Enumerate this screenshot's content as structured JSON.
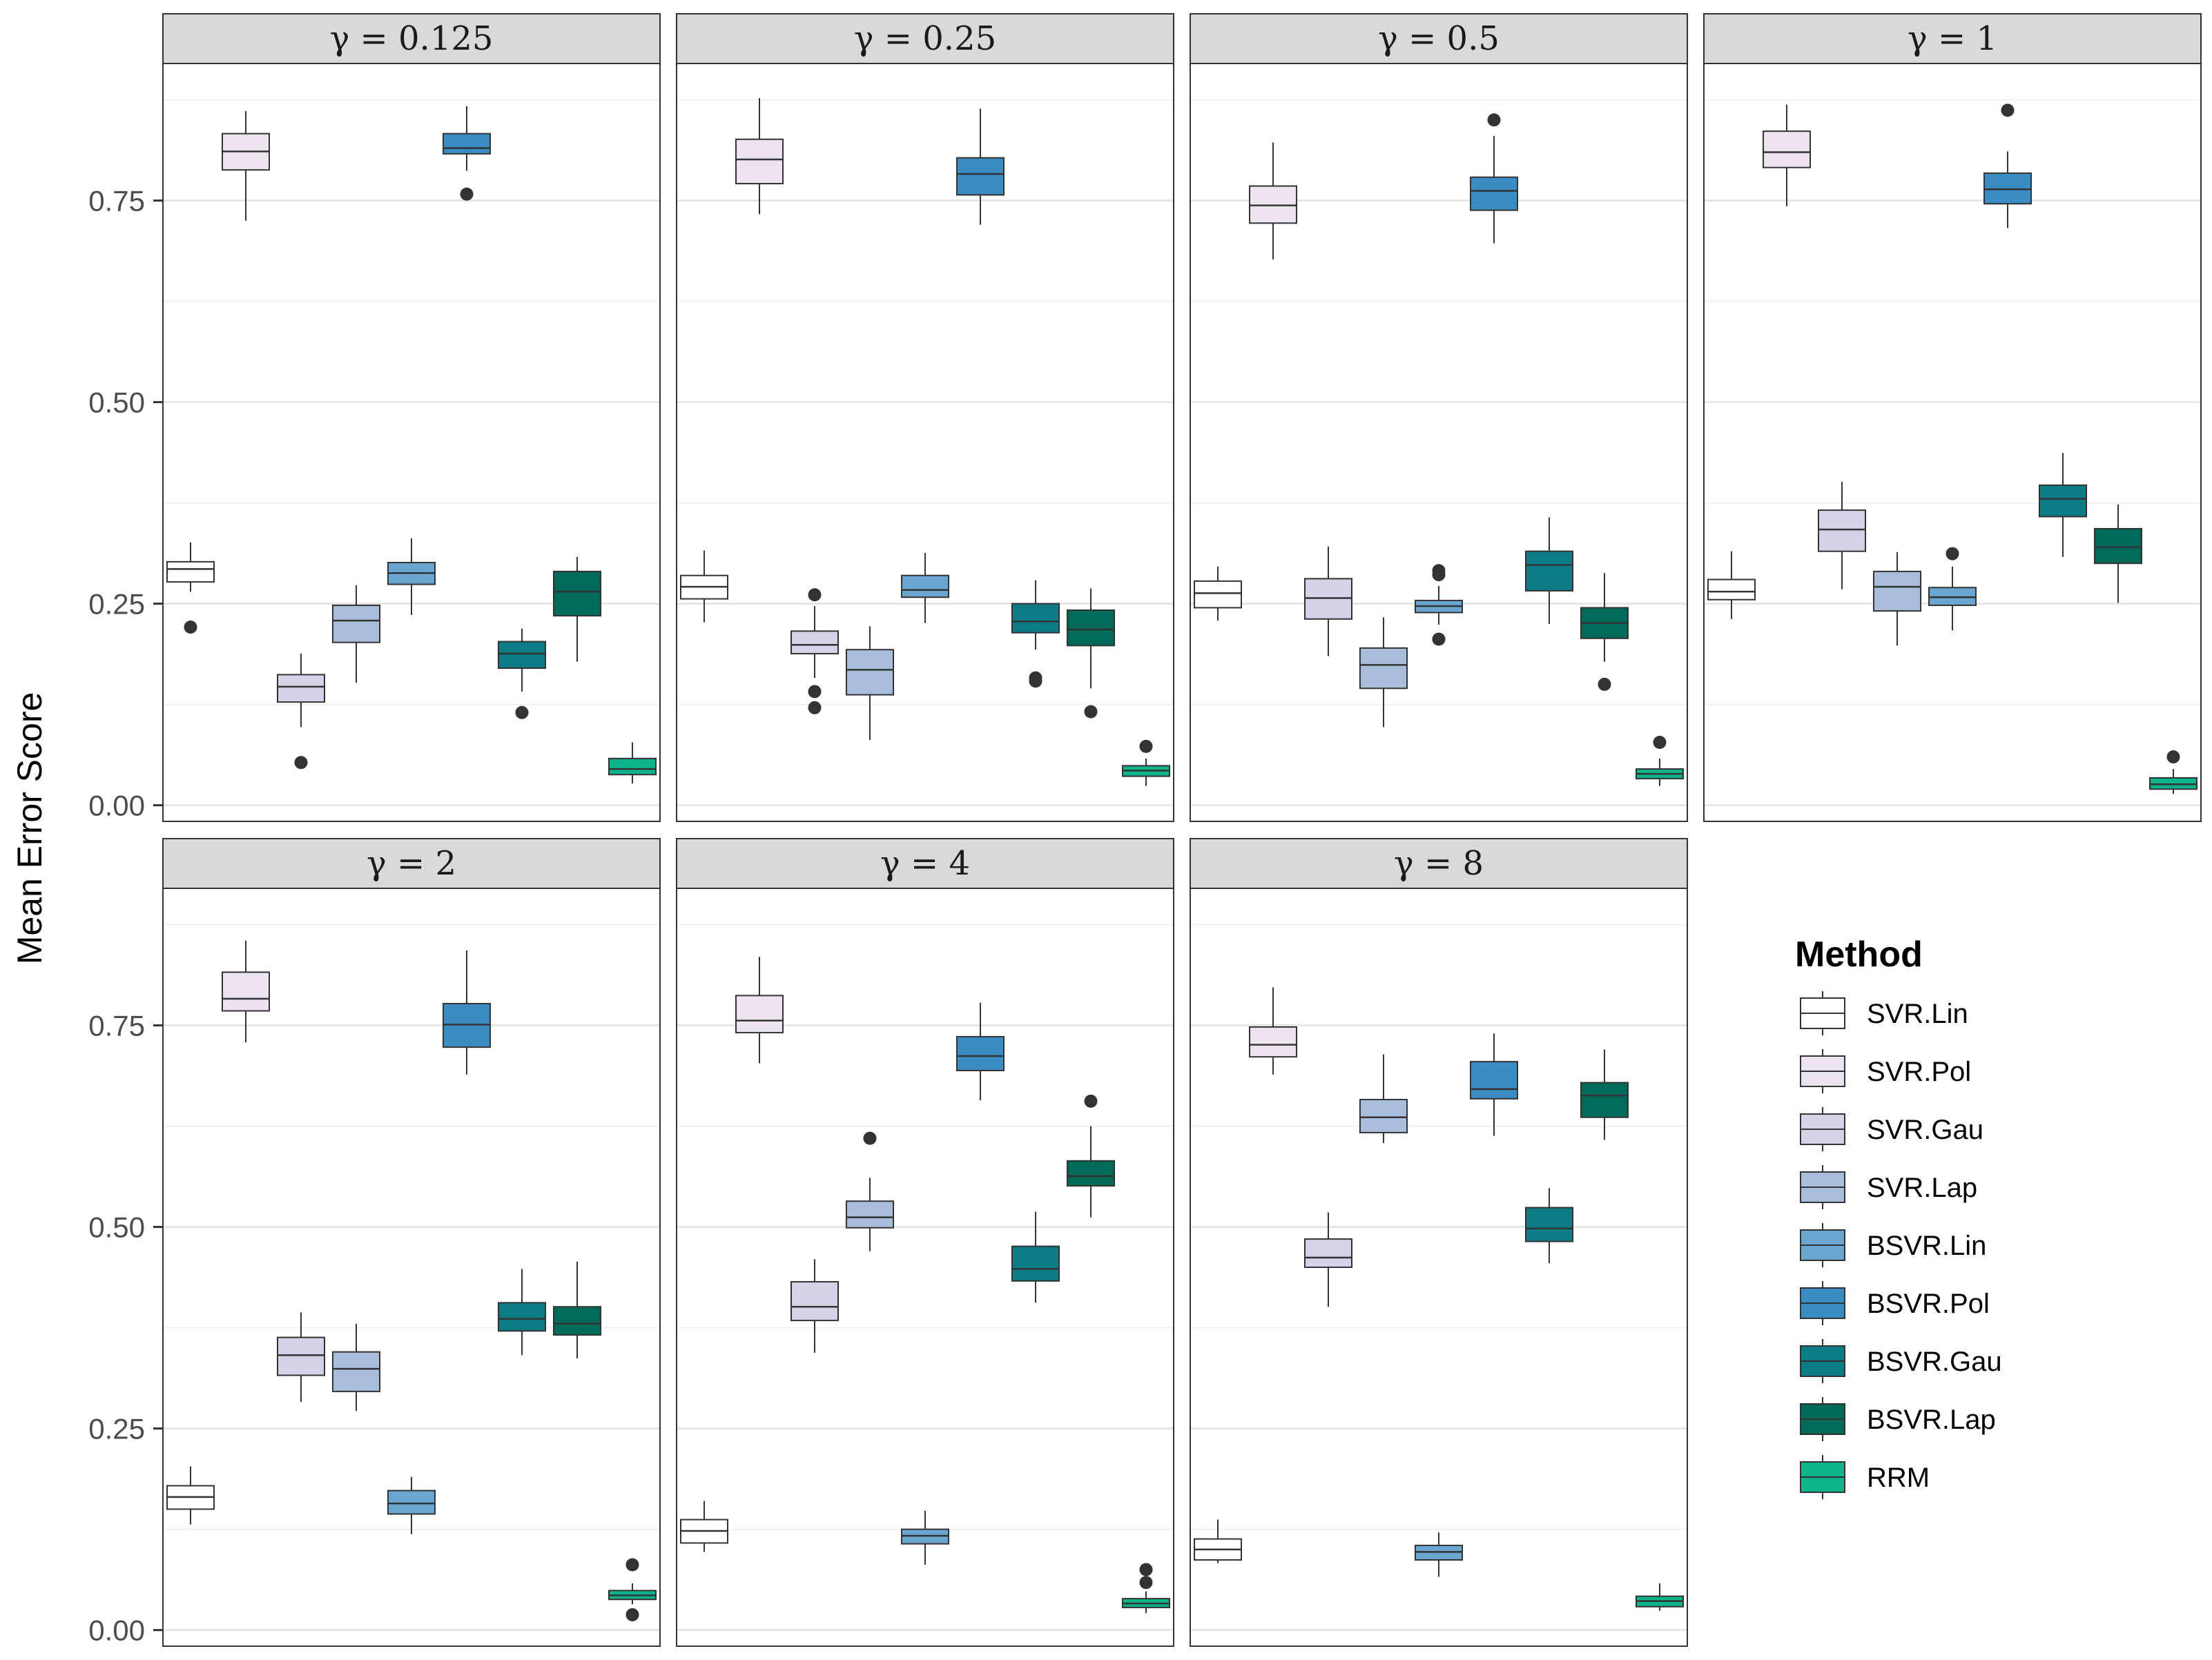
{
  "chart_data": {
    "type": "boxplot",
    "facet_variable": "γ",
    "ylabel": "Mean Error Score",
    "ylim": [
      -0.02,
      0.92
    ],
    "y_ticks": [
      0.0,
      0.25,
      0.5,
      0.75
    ],
    "y_tick_labels": [
      "0.00",
      "0.25",
      "0.50",
      "0.75"
    ],
    "grid": true,
    "legend": {
      "title": "Method",
      "position": "right",
      "entries": [
        {
          "name": "SVR.Lin",
          "color": "#FFFFFF"
        },
        {
          "name": "SVR.Pol",
          "color": "#EDE3F0"
        },
        {
          "name": "SVR.Gau",
          "color": "#D4D2E7"
        },
        {
          "name": "SVR.Lap",
          "color": "#A9BDDC"
        },
        {
          "name": "BSVR.Lin",
          "color": "#6BA6D0"
        },
        {
          "name": "BSVR.Pol",
          "color": "#3A8CC2"
        },
        {
          "name": "BSVR.Gau",
          "color": "#0B7B86"
        },
        {
          "name": "BSVR.Lap",
          "color": "#016A58"
        },
        {
          "name": "RRM",
          "color": "#0DB38A"
        }
      ]
    },
    "panels": [
      {
        "label": "γ = 0.125",
        "boxes": [
          {
            "method": "SVR.Lin",
            "lower_whisker": 0.265,
            "q1": 0.277,
            "median": 0.293,
            "q3": 0.302,
            "upper_whisker": 0.326,
            "outliers": [
              0.221
            ]
          },
          {
            "method": "SVR.Pol",
            "lower_whisker": 0.725,
            "q1": 0.788,
            "median": 0.811,
            "q3": 0.833,
            "upper_whisker": 0.861,
            "outliers": []
          },
          {
            "method": "SVR.Gau",
            "lower_whisker": 0.097,
            "q1": 0.128,
            "median": 0.147,
            "q3": 0.162,
            "upper_whisker": 0.188,
            "outliers": [
              0.053
            ]
          },
          {
            "method": "SVR.Lap",
            "lower_whisker": 0.152,
            "q1": 0.202,
            "median": 0.229,
            "q3": 0.248,
            "upper_whisker": 0.273,
            "outliers": []
          },
          {
            "method": "BSVR.Lin",
            "lower_whisker": 0.236,
            "q1": 0.274,
            "median": 0.288,
            "q3": 0.301,
            "upper_whisker": 0.331,
            "outliers": []
          },
          {
            "method": "BSVR.Pol",
            "lower_whisker": 0.787,
            "q1": 0.808,
            "median": 0.815,
            "q3": 0.833,
            "upper_whisker": 0.867,
            "outliers": [
              0.758
            ]
          },
          {
            "method": "BSVR.Gau",
            "lower_whisker": 0.141,
            "q1": 0.17,
            "median": 0.188,
            "q3": 0.203,
            "upper_whisker": 0.219,
            "outliers": [
              0.115
            ]
          },
          {
            "method": "BSVR.Lap",
            "lower_whisker": 0.178,
            "q1": 0.235,
            "median": 0.265,
            "q3": 0.29,
            "upper_whisker": 0.308,
            "outliers": []
          },
          {
            "method": "RRM",
            "lower_whisker": 0.027,
            "q1": 0.038,
            "median": 0.045,
            "q3": 0.058,
            "upper_whisker": 0.078,
            "outliers": []
          }
        ]
      },
      {
        "label": "γ =  0.25",
        "boxes": [
          {
            "method": "SVR.Lin",
            "lower_whisker": 0.227,
            "q1": 0.256,
            "median": 0.271,
            "q3": 0.285,
            "upper_whisker": 0.316,
            "outliers": []
          },
          {
            "method": "SVR.Pol",
            "lower_whisker": 0.733,
            "q1": 0.771,
            "median": 0.801,
            "q3": 0.826,
            "upper_whisker": 0.877,
            "outliers": []
          },
          {
            "method": "SVR.Gau",
            "lower_whisker": 0.158,
            "q1": 0.188,
            "median": 0.199,
            "q3": 0.216,
            "upper_whisker": 0.247,
            "outliers": [
              0.261,
              0.141,
              0.121
            ]
          },
          {
            "method": "SVR.Lap",
            "lower_whisker": 0.081,
            "q1": 0.137,
            "median": 0.168,
            "q3": 0.193,
            "upper_whisker": 0.222,
            "outliers": []
          },
          {
            "method": "BSVR.Lin",
            "lower_whisker": 0.226,
            "q1": 0.258,
            "median": 0.267,
            "q3": 0.285,
            "upper_whisker": 0.313,
            "outliers": []
          },
          {
            "method": "BSVR.Pol",
            "lower_whisker": 0.72,
            "q1": 0.757,
            "median": 0.783,
            "q3": 0.803,
            "upper_whisker": 0.864,
            "outliers": []
          },
          {
            "method": "BSVR.Gau",
            "lower_whisker": 0.193,
            "q1": 0.214,
            "median": 0.228,
            "q3": 0.25,
            "upper_whisker": 0.279,
            "outliers": [
              0.158,
              0.154
            ]
          },
          {
            "method": "BSVR.Lap",
            "lower_whisker": 0.145,
            "q1": 0.198,
            "median": 0.218,
            "q3": 0.242,
            "upper_whisker": 0.269,
            "outliers": [
              0.116
            ]
          },
          {
            "method": "RRM",
            "lower_whisker": 0.024,
            "q1": 0.036,
            "median": 0.043,
            "q3": 0.049,
            "upper_whisker": 0.058,
            "outliers": [
              0.073
            ]
          }
        ]
      },
      {
        "label": "γ = 0.5",
        "boxes": [
          {
            "method": "SVR.Lin",
            "lower_whisker": 0.229,
            "q1": 0.245,
            "median": 0.263,
            "q3": 0.278,
            "upper_whisker": 0.296,
            "outliers": []
          },
          {
            "method": "SVR.Pol",
            "lower_whisker": 0.677,
            "q1": 0.722,
            "median": 0.744,
            "q3": 0.768,
            "upper_whisker": 0.822,
            "outliers": []
          },
          {
            "method": "SVR.Gau",
            "lower_whisker": 0.185,
            "q1": 0.231,
            "median": 0.257,
            "q3": 0.281,
            "upper_whisker": 0.321,
            "outliers": []
          },
          {
            "method": "SVR.Lap",
            "lower_whisker": 0.097,
            "q1": 0.145,
            "median": 0.174,
            "q3": 0.195,
            "upper_whisker": 0.233,
            "outliers": []
          },
          {
            "method": "BSVR.Lin",
            "lower_whisker": 0.224,
            "q1": 0.239,
            "median": 0.247,
            "q3": 0.254,
            "upper_whisker": 0.272,
            "outliers": [
              0.291,
              0.286,
              0.206
            ]
          },
          {
            "method": "BSVR.Pol",
            "lower_whisker": 0.697,
            "q1": 0.738,
            "median": 0.762,
            "q3": 0.779,
            "upper_whisker": 0.83,
            "outliers": [
              0.85
            ]
          },
          {
            "method": "BSVR.Gau",
            "lower_whisker": 0.225,
            "q1": 0.266,
            "median": 0.298,
            "q3": 0.315,
            "upper_whisker": 0.357,
            "outliers": []
          },
          {
            "method": "BSVR.Lap",
            "lower_whisker": 0.178,
            "q1": 0.207,
            "median": 0.226,
            "q3": 0.245,
            "upper_whisker": 0.288,
            "outliers": [
              0.15
            ]
          },
          {
            "method": "RRM",
            "lower_whisker": 0.024,
            "q1": 0.033,
            "median": 0.039,
            "q3": 0.045,
            "upper_whisker": 0.058,
            "outliers": [
              0.078
            ]
          }
        ]
      },
      {
        "label": "γ = 1",
        "boxes": [
          {
            "method": "SVR.Lin",
            "lower_whisker": 0.231,
            "q1": 0.255,
            "median": 0.265,
            "q3": 0.28,
            "upper_whisker": 0.315,
            "outliers": []
          },
          {
            "method": "SVR.Pol",
            "lower_whisker": 0.743,
            "q1": 0.791,
            "median": 0.81,
            "q3": 0.836,
            "upper_whisker": 0.869,
            "outliers": []
          },
          {
            "method": "SVR.Gau",
            "lower_whisker": 0.268,
            "q1": 0.315,
            "median": 0.342,
            "q3": 0.366,
            "upper_whisker": 0.401,
            "outliers": []
          },
          {
            "method": "SVR.Lap",
            "lower_whisker": 0.198,
            "q1": 0.241,
            "median": 0.271,
            "q3": 0.29,
            "upper_whisker": 0.314,
            "outliers": []
          },
          {
            "method": "BSVR.Lin",
            "lower_whisker": 0.217,
            "q1": 0.248,
            "median": 0.258,
            "q3": 0.27,
            "upper_whisker": 0.296,
            "outliers": [
              0.312
            ]
          },
          {
            "method": "BSVR.Pol",
            "lower_whisker": 0.716,
            "q1": 0.746,
            "median": 0.764,
            "q3": 0.784,
            "upper_whisker": 0.811,
            "outliers": [
              0.862
            ]
          },
          {
            "method": "BSVR.Gau",
            "lower_whisker": 0.308,
            "q1": 0.358,
            "median": 0.38,
            "q3": 0.397,
            "upper_whisker": 0.437,
            "outliers": []
          },
          {
            "method": "BSVR.Lap",
            "lower_whisker": 0.251,
            "q1": 0.3,
            "median": 0.32,
            "q3": 0.343,
            "upper_whisker": 0.373,
            "outliers": []
          },
          {
            "method": "RRM",
            "lower_whisker": 0.014,
            "q1": 0.02,
            "median": 0.026,
            "q3": 0.034,
            "upper_whisker": 0.045,
            "outliers": [
              0.06
            ]
          }
        ]
      },
      {
        "label": "γ = 2",
        "boxes": [
          {
            "method": "SVR.Lin",
            "lower_whisker": 0.131,
            "q1": 0.15,
            "median": 0.165,
            "q3": 0.179,
            "upper_whisker": 0.203,
            "outliers": []
          },
          {
            "method": "SVR.Pol",
            "lower_whisker": 0.729,
            "q1": 0.768,
            "median": 0.783,
            "q3": 0.816,
            "upper_whisker": 0.855,
            "outliers": []
          },
          {
            "method": "SVR.Gau",
            "lower_whisker": 0.283,
            "q1": 0.316,
            "median": 0.341,
            "q3": 0.363,
            "upper_whisker": 0.394,
            "outliers": []
          },
          {
            "method": "SVR.Lap",
            "lower_whisker": 0.272,
            "q1": 0.296,
            "median": 0.324,
            "q3": 0.345,
            "upper_whisker": 0.38,
            "outliers": []
          },
          {
            "method": "BSVR.Lin",
            "lower_whisker": 0.119,
            "q1": 0.144,
            "median": 0.157,
            "q3": 0.173,
            "upper_whisker": 0.19,
            "outliers": []
          },
          {
            "method": "BSVR.Pol",
            "lower_whisker": 0.689,
            "q1": 0.723,
            "median": 0.751,
            "q3": 0.777,
            "upper_whisker": 0.843,
            "outliers": []
          },
          {
            "method": "BSVR.Gau",
            "lower_whisker": 0.341,
            "q1": 0.371,
            "median": 0.386,
            "q3": 0.406,
            "upper_whisker": 0.448,
            "outliers": []
          },
          {
            "method": "BSVR.Lap",
            "lower_whisker": 0.337,
            "q1": 0.366,
            "median": 0.38,
            "q3": 0.401,
            "upper_whisker": 0.457,
            "outliers": []
          },
          {
            "method": "RRM",
            "lower_whisker": 0.032,
            "q1": 0.038,
            "median": 0.043,
            "q3": 0.049,
            "upper_whisker": 0.058,
            "outliers": [
              0.081,
              0.019
            ]
          }
        ]
      },
      {
        "label": "γ = 4",
        "boxes": [
          {
            "method": "SVR.Lin",
            "lower_whisker": 0.097,
            "q1": 0.108,
            "median": 0.123,
            "q3": 0.137,
            "upper_whisker": 0.16,
            "outliers": []
          },
          {
            "method": "SVR.Pol",
            "lower_whisker": 0.703,
            "q1": 0.741,
            "median": 0.756,
            "q3": 0.787,
            "upper_whisker": 0.835,
            "outliers": []
          },
          {
            "method": "SVR.Gau",
            "lower_whisker": 0.344,
            "q1": 0.384,
            "median": 0.401,
            "q3": 0.432,
            "upper_whisker": 0.46,
            "outliers": []
          },
          {
            "method": "SVR.Lap",
            "lower_whisker": 0.47,
            "q1": 0.499,
            "median": 0.512,
            "q3": 0.532,
            "upper_whisker": 0.561,
            "outliers": [
              0.61
            ]
          },
          {
            "method": "BSVR.Lin",
            "lower_whisker": 0.081,
            "q1": 0.107,
            "median": 0.117,
            "q3": 0.125,
            "upper_whisker": 0.148,
            "outliers": []
          },
          {
            "method": "BSVR.Pol",
            "lower_whisker": 0.657,
            "q1": 0.694,
            "median": 0.712,
            "q3": 0.736,
            "upper_whisker": 0.778,
            "outliers": []
          },
          {
            "method": "BSVR.Gau",
            "lower_whisker": 0.406,
            "q1": 0.433,
            "median": 0.448,
            "q3": 0.476,
            "upper_whisker": 0.519,
            "outliers": []
          },
          {
            "method": "BSVR.Lap",
            "lower_whisker": 0.512,
            "q1": 0.551,
            "median": 0.563,
            "q3": 0.582,
            "upper_whisker": 0.625,
            "outliers": [
              0.656
            ]
          },
          {
            "method": "RRM",
            "lower_whisker": 0.021,
            "q1": 0.028,
            "median": 0.033,
            "q3": 0.039,
            "upper_whisker": 0.048,
            "outliers": [
              0.075,
              0.059
            ]
          }
        ]
      },
      {
        "label": "γ = 8",
        "boxes": [
          {
            "method": "SVR.Lin",
            "lower_whisker": 0.083,
            "q1": 0.087,
            "median": 0.1,
            "q3": 0.113,
            "upper_whisker": 0.137,
            "outliers": []
          },
          {
            "method": "SVR.Pol",
            "lower_whisker": 0.689,
            "q1": 0.711,
            "median": 0.726,
            "q3": 0.748,
            "upper_whisker": 0.797,
            "outliers": []
          },
          {
            "method": "SVR.Gau",
            "lower_whisker": 0.401,
            "q1": 0.45,
            "median": 0.462,
            "q3": 0.485,
            "upper_whisker": 0.518,
            "outliers": []
          },
          {
            "method": "SVR.Lap",
            "lower_whisker": 0.604,
            "q1": 0.617,
            "median": 0.636,
            "q3": 0.658,
            "upper_whisker": 0.714,
            "outliers": []
          },
          {
            "method": "BSVR.Lin",
            "lower_whisker": 0.066,
            "q1": 0.087,
            "median": 0.097,
            "q3": 0.105,
            "upper_whisker": 0.121,
            "outliers": []
          },
          {
            "method": "BSVR.Pol",
            "lower_whisker": 0.613,
            "q1": 0.659,
            "median": 0.671,
            "q3": 0.705,
            "upper_whisker": 0.74,
            "outliers": []
          },
          {
            "method": "BSVR.Gau",
            "lower_whisker": 0.455,
            "q1": 0.482,
            "median": 0.498,
            "q3": 0.524,
            "upper_whisker": 0.548,
            "outliers": []
          },
          {
            "method": "BSVR.Lap",
            "lower_whisker": 0.608,
            "q1": 0.636,
            "median": 0.663,
            "q3": 0.679,
            "upper_whisker": 0.72,
            "outliers": []
          },
          {
            "method": "RRM",
            "lower_whisker": 0.024,
            "q1": 0.029,
            "median": 0.036,
            "q3": 0.042,
            "upper_whisker": 0.058,
            "outliers": []
          }
        ]
      }
    ]
  }
}
